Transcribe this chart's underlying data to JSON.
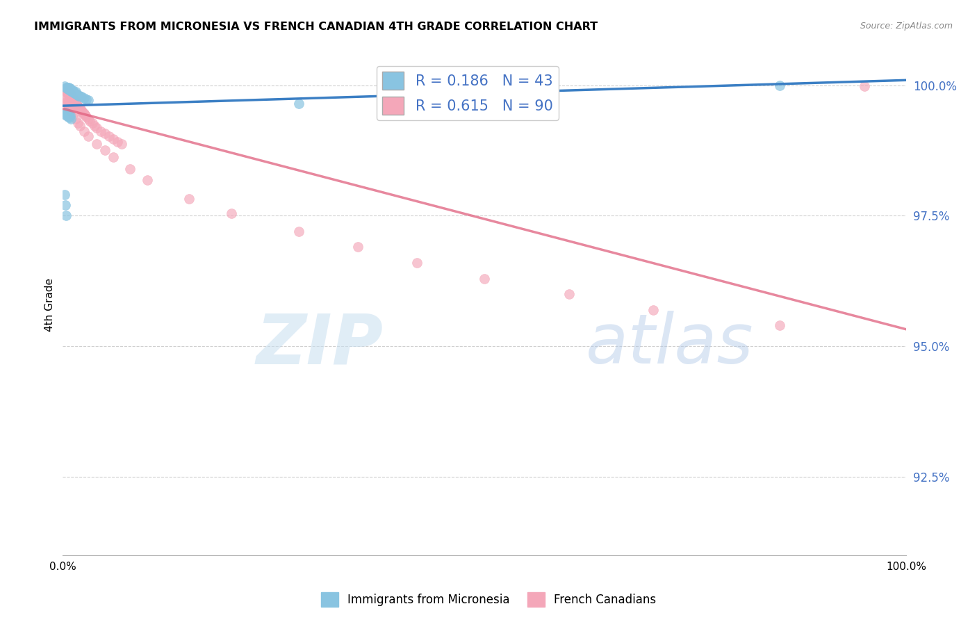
{
  "title": "IMMIGRANTS FROM MICRONESIA VS FRENCH CANADIAN 4TH GRADE CORRELATION CHART",
  "source": "Source: ZipAtlas.com",
  "ylabel": "4th Grade",
  "xlim": [
    0.0,
    1.0
  ],
  "ylim": [
    0.91,
    1.006
  ],
  "yticks": [
    0.925,
    0.95,
    0.975,
    1.0
  ],
  "ytick_labels": [
    "92.5%",
    "95.0%",
    "97.5%",
    "100.0%"
  ],
  "xticks": [
    0.0,
    0.2,
    0.4,
    0.6,
    0.8,
    1.0
  ],
  "xtick_labels": [
    "0.0%",
    "",
    "",
    "",
    "",
    "100.0%"
  ],
  "blue_color": "#89c4e1",
  "pink_color": "#f4a7b9",
  "blue_line_color": "#3b7fc4",
  "pink_line_color": "#e0607e",
  "R_blue": 0.186,
  "N_blue": 43,
  "R_pink": 0.615,
  "N_pink": 90,
  "legend_label_blue": "Immigrants from Micronesia",
  "legend_label_pink": "French Canadians",
  "watermark_zip": "ZIP",
  "watermark_atlas": "atlas",
  "blue_x": [
    0.002,
    0.004,
    0.005,
    0.005,
    0.006,
    0.006,
    0.007,
    0.007,
    0.008,
    0.009,
    0.009,
    0.01,
    0.01,
    0.011,
    0.012,
    0.012,
    0.013,
    0.014,
    0.015,
    0.015,
    0.016,
    0.017,
    0.018,
    0.019,
    0.02,
    0.022,
    0.025,
    0.028,
    0.03,
    0.002,
    0.003,
    0.004,
    0.005,
    0.006,
    0.007,
    0.008,
    0.009,
    0.01,
    0.002,
    0.003,
    0.004,
    0.85,
    0.28
  ],
  "blue_y": [
    0.9998,
    0.9995,
    0.9996,
    0.9994,
    0.9993,
    0.9996,
    0.9992,
    0.9995,
    0.9991,
    0.999,
    0.9994,
    0.9989,
    0.9992,
    0.9988,
    0.9987,
    0.999,
    0.9986,
    0.9985,
    0.9984,
    0.9988,
    0.9983,
    0.9982,
    0.9981,
    0.998,
    0.9979,
    0.9978,
    0.9975,
    0.9973,
    0.9972,
    0.9945,
    0.9948,
    0.9942,
    0.9946,
    0.994,
    0.9944,
    0.9938,
    0.9942,
    0.9936,
    0.979,
    0.977,
    0.975,
    0.9999,
    0.9965
  ],
  "pink_x": [
    0.002,
    0.002,
    0.003,
    0.003,
    0.004,
    0.004,
    0.004,
    0.005,
    0.005,
    0.005,
    0.005,
    0.006,
    0.006,
    0.006,
    0.007,
    0.007,
    0.007,
    0.008,
    0.008,
    0.008,
    0.009,
    0.009,
    0.01,
    0.01,
    0.01,
    0.011,
    0.011,
    0.012,
    0.012,
    0.013,
    0.013,
    0.014,
    0.014,
    0.015,
    0.015,
    0.016,
    0.017,
    0.018,
    0.019,
    0.02,
    0.021,
    0.022,
    0.023,
    0.024,
    0.025,
    0.026,
    0.027,
    0.028,
    0.03,
    0.032,
    0.035,
    0.038,
    0.04,
    0.045,
    0.05,
    0.055,
    0.06,
    0.065,
    0.07,
    0.002,
    0.003,
    0.004,
    0.005,
    0.006,
    0.007,
    0.008,
    0.009,
    0.01,
    0.012,
    0.015,
    0.018,
    0.02,
    0.025,
    0.03,
    0.04,
    0.05,
    0.06,
    0.08,
    0.1,
    0.15,
    0.2,
    0.28,
    0.35,
    0.42,
    0.5,
    0.6,
    0.7,
    0.85,
    0.95
  ],
  "pink_y": [
    0.999,
    0.9993,
    0.999,
    0.9992,
    0.9988,
    0.9991,
    0.9993,
    0.9986,
    0.9989,
    0.9992,
    0.9994,
    0.9984,
    0.9987,
    0.999,
    0.9982,
    0.9985,
    0.9988,
    0.998,
    0.9983,
    0.9986,
    0.9978,
    0.9981,
    0.9976,
    0.9979,
    0.9982,
    0.9974,
    0.9977,
    0.9972,
    0.9975,
    0.997,
    0.9973,
    0.9968,
    0.9971,
    0.9966,
    0.9969,
    0.9964,
    0.9962,
    0.996,
    0.9958,
    0.9956,
    0.9954,
    0.9952,
    0.995,
    0.9948,
    0.9946,
    0.9944,
    0.9942,
    0.994,
    0.9936,
    0.9932,
    0.9927,
    0.9922,
    0.9918,
    0.9912,
    0.9907,
    0.9902,
    0.9897,
    0.9892,
    0.9887,
    0.9975,
    0.9972,
    0.9968,
    0.9965,
    0.9962,
    0.9959,
    0.9956,
    0.9953,
    0.995,
    0.9944,
    0.9936,
    0.9928,
    0.9922,
    0.9912,
    0.9902,
    0.9888,
    0.9875,
    0.9862,
    0.984,
    0.9818,
    0.9782,
    0.9755,
    0.972,
    0.969,
    0.966,
    0.963,
    0.96,
    0.957,
    0.954,
    0.9998
  ]
}
